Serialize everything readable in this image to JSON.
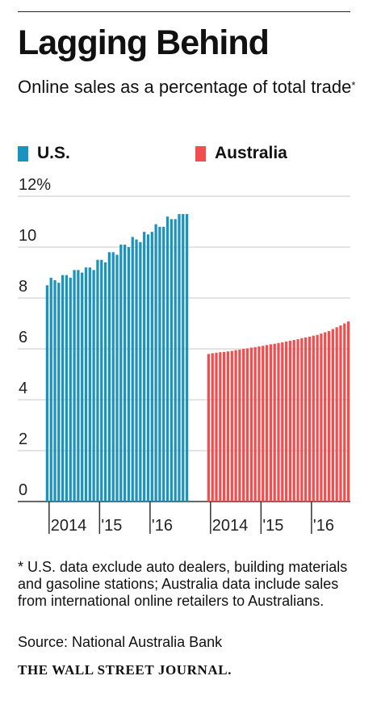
{
  "title": "Lagging Behind",
  "subtitle": {
    "text": "Online sales as a percentage of total trade",
    "mark": "*"
  },
  "colors": {
    "us": "#1a93bf",
    "australia": "#f24d4f",
    "grid": "#c8c8c8",
    "axis": "#333333"
  },
  "legend": [
    {
      "label": "U.S.",
      "color": "#1a93bf"
    },
    {
      "label": "Australia",
      "color": "#f24d4f"
    }
  ],
  "footnote": "* U.S. data exclude auto dealers, building materials and gasoline stations; Australia data include sales from international online retailers to Australians.",
  "source": "Source: National Australia Bank",
  "publisher": "THE WALL STREET JOURNAL.",
  "chart_data": {
    "type": "bar",
    "ylabel": "",
    "ylim": [
      0,
      12
    ],
    "yticks": [
      0,
      2,
      4,
      6,
      8,
      10,
      12
    ],
    "ytick_labels": [
      "0",
      "2",
      "4",
      "6",
      "8",
      "10",
      "12%"
    ],
    "grid": true,
    "legend_position": "top",
    "panels": [
      {
        "name": "U.S.",
        "color": "#1a93bf",
        "period_labels": [
          "2014",
          "'15",
          "'16"
        ],
        "tick_at_bar": [
          1,
          14,
          27
        ],
        "values": [
          8.5,
          8.8,
          8.7,
          8.6,
          8.9,
          8.9,
          8.8,
          9.1,
          9.1,
          9.0,
          9.2,
          9.2,
          9.1,
          9.5,
          9.5,
          9.4,
          9.8,
          9.8,
          9.7,
          10.1,
          10.1,
          10.0,
          10.4,
          10.3,
          10.2,
          10.6,
          10.5,
          10.6,
          10.9,
          10.8,
          10.8,
          11.2,
          11.1,
          11.1,
          11.3,
          11.3,
          11.3
        ]
      },
      {
        "name": "Australia",
        "color": "#f24d4f",
        "period_labels": [
          "2014",
          "'15",
          "'16"
        ],
        "tick_at_bar": [
          1,
          14,
          27
        ],
        "values": [
          5.8,
          5.83,
          5.85,
          5.87,
          5.88,
          5.9,
          5.92,
          5.95,
          5.97,
          6.0,
          6.02,
          6.05,
          6.07,
          6.1,
          6.12,
          6.15,
          6.18,
          6.2,
          6.23,
          6.26,
          6.29,
          6.32,
          6.35,
          6.38,
          6.42,
          6.45,
          6.48,
          6.52,
          6.55,
          6.6,
          6.65,
          6.7,
          6.78,
          6.85,
          6.92,
          7.0,
          7.08
        ]
      }
    ]
  }
}
